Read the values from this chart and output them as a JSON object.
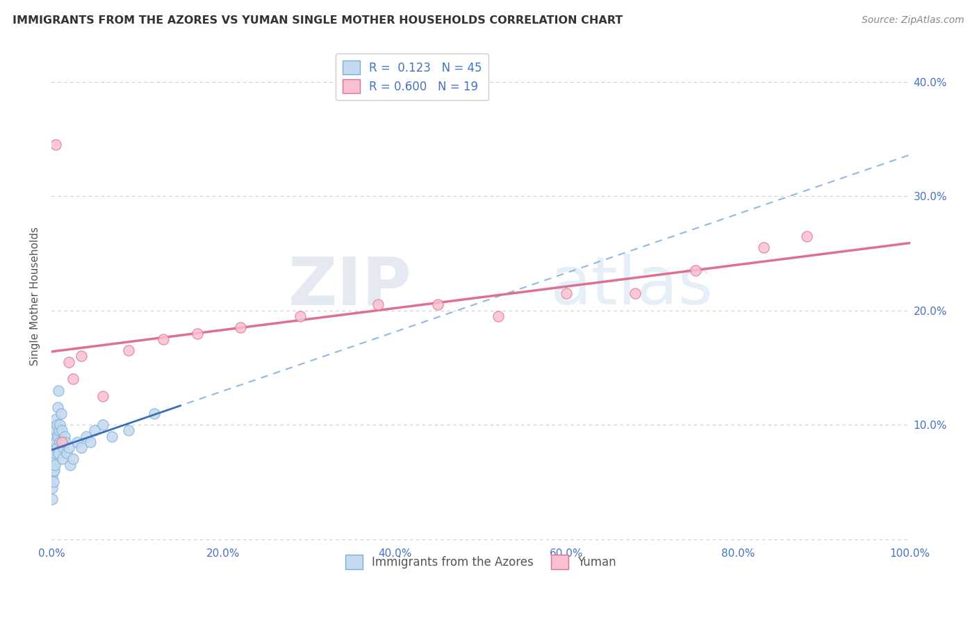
{
  "title": "IMMIGRANTS FROM THE AZORES VS YUMAN SINGLE MOTHER HOUSEHOLDS CORRELATION CHART",
  "source": "Source: ZipAtlas.com",
  "ylabel": "Single Mother Households",
  "xlim": [
    0.0,
    1.0
  ],
  "ylim": [
    -0.005,
    0.43
  ],
  "azores_x": [
    0.001,
    0.001,
    0.001,
    0.002,
    0.002,
    0.002,
    0.002,
    0.003,
    0.003,
    0.003,
    0.003,
    0.004,
    0.004,
    0.004,
    0.005,
    0.005,
    0.005,
    0.006,
    0.006,
    0.007,
    0.007,
    0.008,
    0.008,
    0.009,
    0.01,
    0.01,
    0.011,
    0.012,
    0.013,
    0.014,
    0.015,
    0.016,
    0.018,
    0.02,
    0.022,
    0.025,
    0.03,
    0.035,
    0.04,
    0.045,
    0.05,
    0.06,
    0.07,
    0.09,
    0.12
  ],
  "azores_y": [
    0.035,
    0.045,
    0.055,
    0.05,
    0.06,
    0.065,
    0.075,
    0.06,
    0.07,
    0.08,
    0.09,
    0.065,
    0.075,
    0.09,
    0.085,
    0.095,
    0.105,
    0.08,
    0.1,
    0.09,
    0.115,
    0.13,
    0.075,
    0.095,
    0.1,
    0.085,
    0.11,
    0.095,
    0.07,
    0.08,
    0.09,
    0.085,
    0.075,
    0.08,
    0.065,
    0.07,
    0.085,
    0.08,
    0.09,
    0.085,
    0.095,
    0.1,
    0.09,
    0.095,
    0.11
  ],
  "yuman_x": [
    0.005,
    0.012,
    0.02,
    0.025,
    0.035,
    0.06,
    0.09,
    0.13,
    0.17,
    0.22,
    0.29,
    0.38,
    0.45,
    0.52,
    0.6,
    0.68,
    0.75,
    0.83,
    0.88
  ],
  "yuman_y": [
    0.345,
    0.085,
    0.155,
    0.14,
    0.16,
    0.125,
    0.165,
    0.175,
    0.18,
    0.185,
    0.195,
    0.205,
    0.205,
    0.195,
    0.215,
    0.215,
    0.235,
    0.255,
    0.265
  ],
  "azores_color": "#c5d9f0",
  "azores_edge": "#7bafd4",
  "yuman_color": "#f9c0d0",
  "yuman_edge": "#e07090",
  "azores_line_color": "#3a6fb5",
  "azores_dash_color": "#90b8e0",
  "yuman_line_color": "#e07090",
  "watermark_zip": "ZIP",
  "watermark_atlas": "atlas",
  "background_color": "#ffffff",
  "grid_color": "#cccccc",
  "tick_color": "#4472c4",
  "title_color": "#333333",
  "source_color": "#888888",
  "ylabel_color": "#555555"
}
